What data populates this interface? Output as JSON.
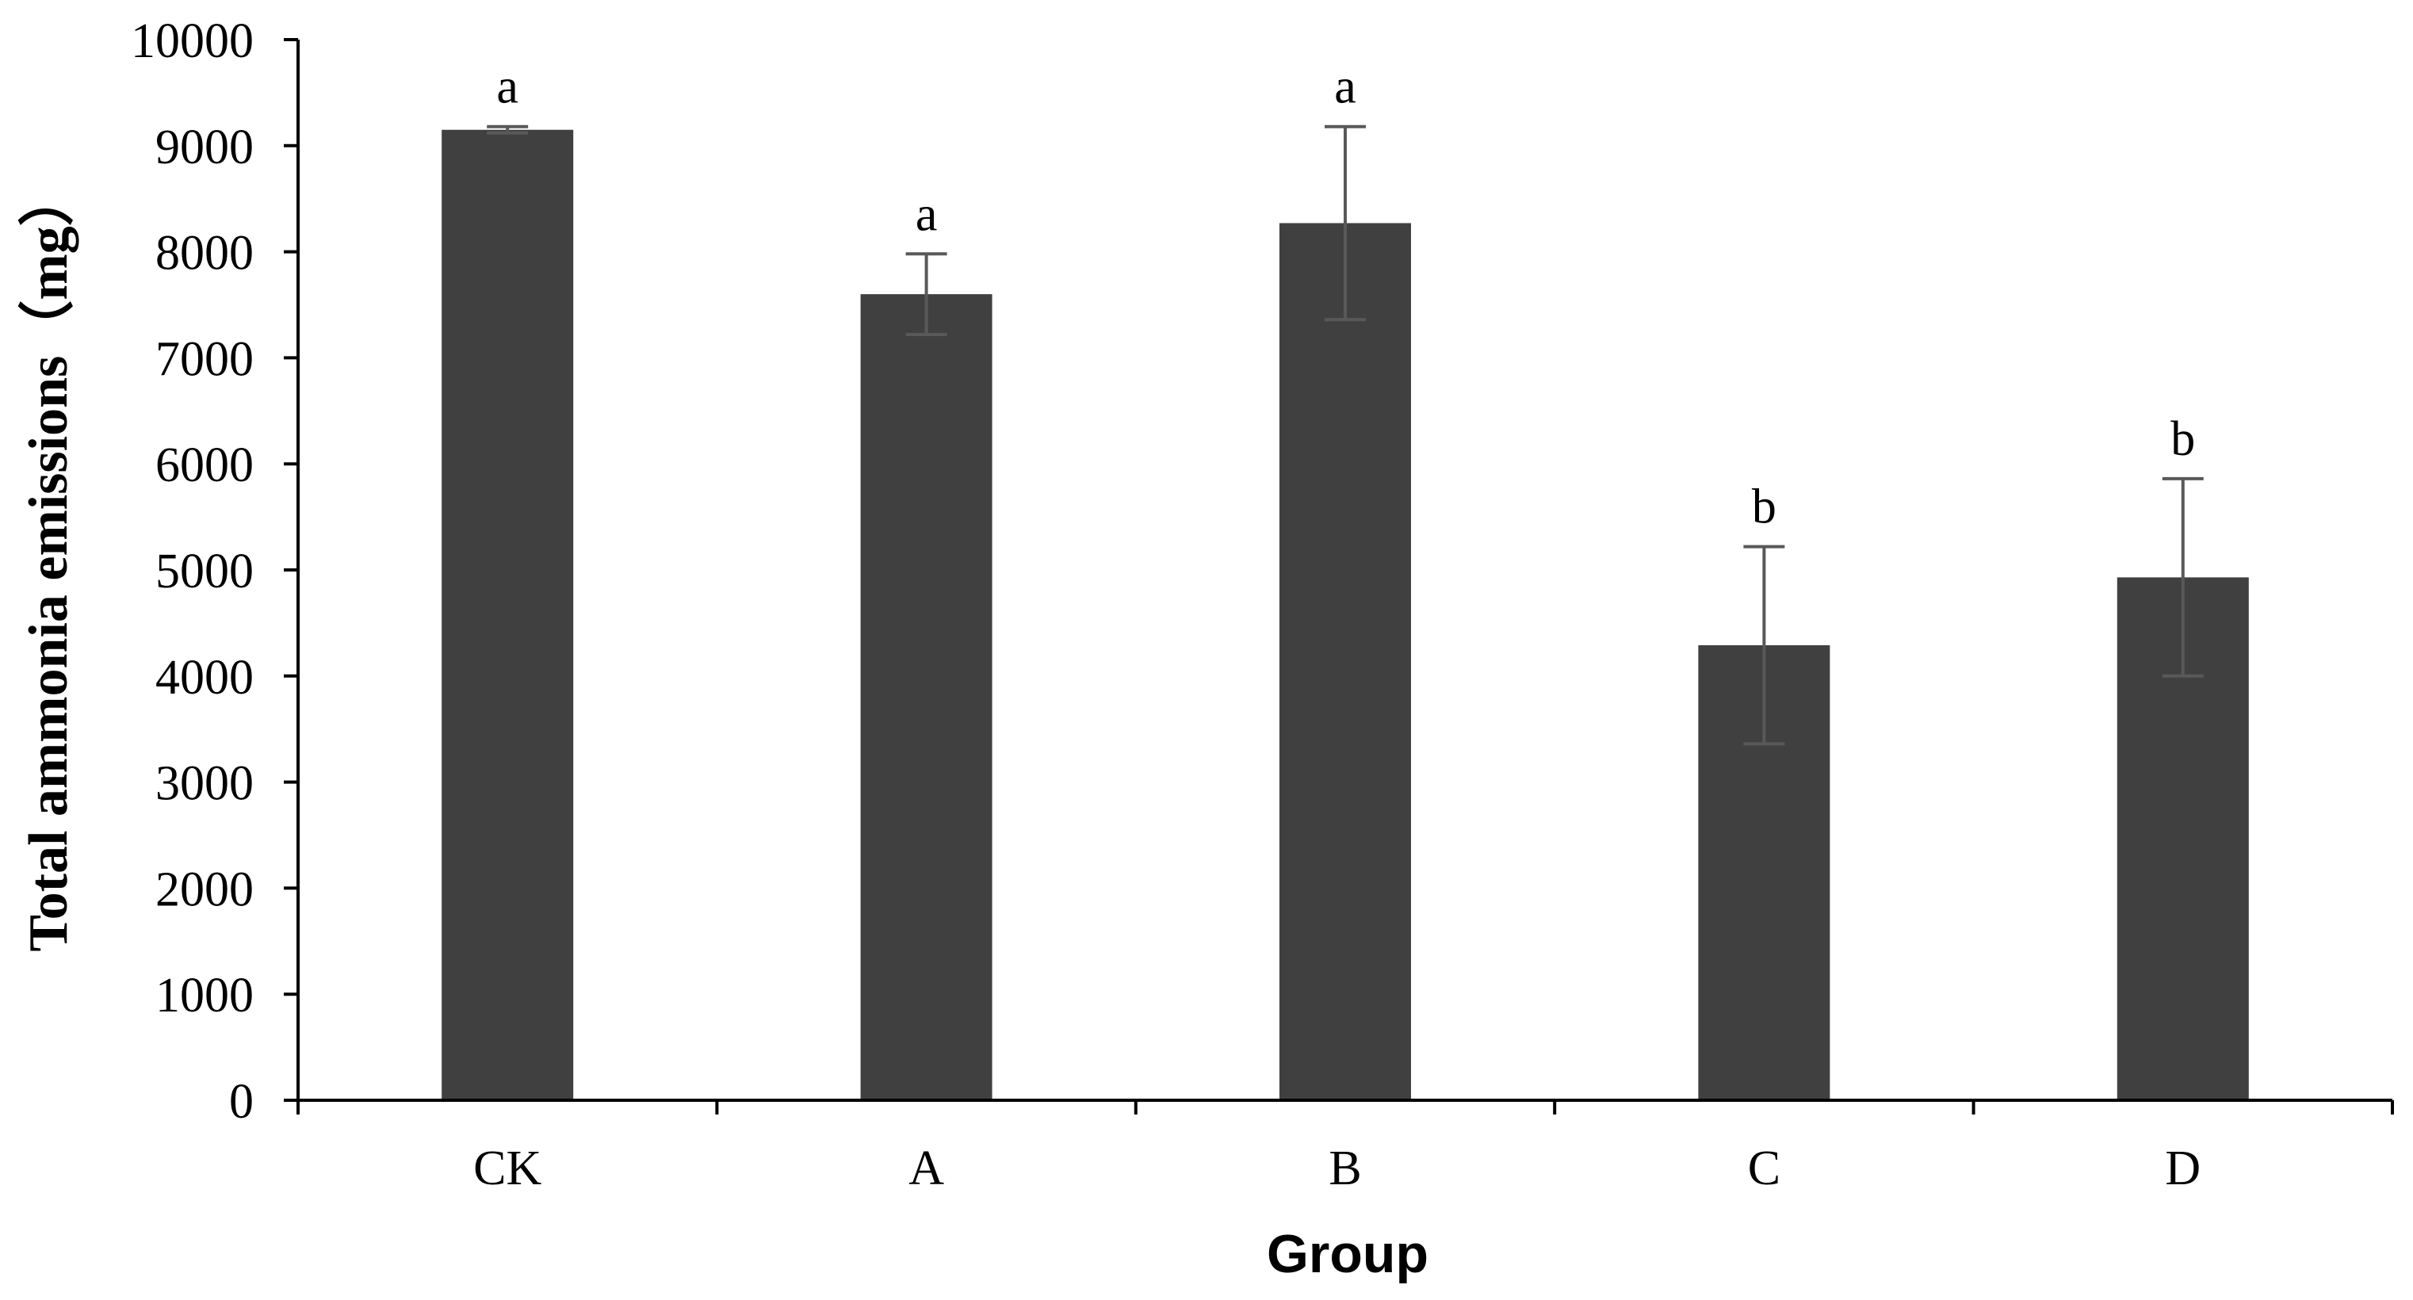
{
  "chart_data": {
    "type": "bar",
    "title": "",
    "xlabel": "Group",
    "ylabel": "Total ammonia emissions（mg）",
    "categories": [
      "CK",
      "A",
      "B",
      "C",
      "D"
    ],
    "values": [
      9150,
      7600,
      8270,
      4290,
      4930
    ],
    "error": [
      30,
      380,
      910,
      930,
      930
    ],
    "significance": [
      "a",
      "a",
      "a",
      "b",
      "b"
    ],
    "ylim": [
      0,
      10000
    ],
    "yticks": [
      0,
      1000,
      2000,
      3000,
      4000,
      5000,
      6000,
      7000,
      8000,
      9000,
      10000
    ],
    "grid": false,
    "legend": "none",
    "colors": {
      "bar": "#404040",
      "error_bar": "#595959",
      "axis": "#000000",
      "text": "#000000"
    }
  }
}
